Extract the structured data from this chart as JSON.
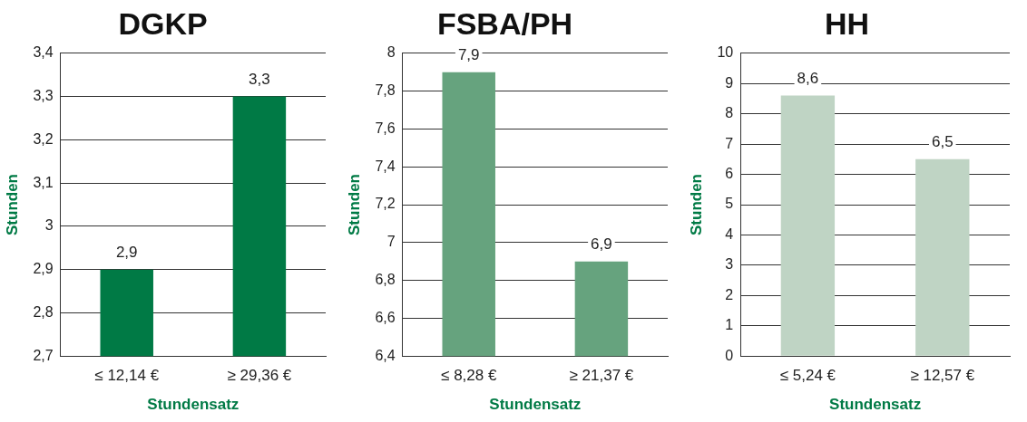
{
  "chart_data": [
    {
      "type": "bar",
      "title": "DGKP",
      "xlabel": "Stundensatz",
      "ylabel": "Stunden",
      "categories": [
        "≤ 12,14 €",
        "≥ 29,36 €"
      ],
      "values": [
        2.9,
        3.3
      ],
      "value_labels": [
        "2,9",
        "3,3"
      ],
      "color": "#007a45",
      "ylim": [
        2.7,
        3.4
      ],
      "yticks": [
        {
          "value": 2.7,
          "label": "2,7"
        },
        {
          "value": 2.8,
          "label": "2,8"
        },
        {
          "value": 2.9,
          "label": "2,9"
        },
        {
          "value": 3,
          "label": "3"
        },
        {
          "value": 3.1,
          "label": "3,1"
        },
        {
          "value": 3.2,
          "label": "3,2"
        },
        {
          "value": 3.3,
          "label": "3,3"
        },
        {
          "value": 3.4,
          "label": "3,4"
        }
      ],
      "grid": "y"
    },
    {
      "type": "bar",
      "title": "FSBA/PH",
      "xlabel": "Stundensatz",
      "ylabel": "Stunden",
      "categories": [
        "≤ 8,28 €",
        "≥ 21,37 €"
      ],
      "values": [
        7.9,
        6.9
      ],
      "value_labels": [
        "7,9",
        "6,9"
      ],
      "color": "#66a37e",
      "ylim": [
        6.4,
        8
      ],
      "yticks": [
        {
          "value": 6.4,
          "label": "6,4"
        },
        {
          "value": 6.6,
          "label": "6,6"
        },
        {
          "value": 6.8,
          "label": "6,8"
        },
        {
          "value": 7,
          "label": "7"
        },
        {
          "value": 7.2,
          "label": "7,2"
        },
        {
          "value": 7.4,
          "label": "7,4"
        },
        {
          "value": 7.6,
          "label": "7,6"
        },
        {
          "value": 7.8,
          "label": "7,8"
        },
        {
          "value": 8,
          "label": "8"
        }
      ],
      "grid": "y"
    },
    {
      "type": "bar",
      "title": "HH",
      "xlabel": "Stundensatz",
      "ylabel": "Stunden",
      "categories": [
        "≤ 5,24 €",
        "≥ 12,57 €"
      ],
      "values": [
        8.6,
        6.5
      ],
      "value_labels": [
        "8,6",
        "6,5"
      ],
      "color": "#bfd4c4",
      "ylim": [
        0,
        10
      ],
      "yticks": [
        0,
        1,
        2,
        3,
        4,
        5,
        6,
        7,
        8,
        9,
        10
      ],
      "grid": "y"
    }
  ]
}
